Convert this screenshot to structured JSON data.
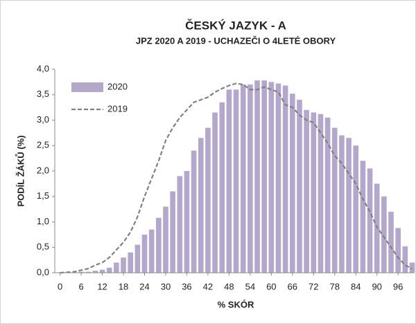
{
  "chart_data": {
    "type": "bar",
    "title": "ČESKÝ JAZYK - A",
    "subtitle": "JPZ 2020 A 2019 - UCHAZEČI O 4LETÉ OBORY",
    "x_label": "% SKÓR",
    "y_label": "PODÍL ŽÁKŮ (%)",
    "x": [
      0,
      2,
      4,
      6,
      8,
      10,
      12,
      14,
      16,
      18,
      20,
      22,
      24,
      26,
      28,
      30,
      32,
      34,
      36,
      38,
      40,
      42,
      44,
      46,
      48,
      50,
      52,
      54,
      56,
      58,
      60,
      62,
      64,
      66,
      68,
      70,
      72,
      74,
      76,
      78,
      80,
      82,
      84,
      86,
      88,
      90,
      92,
      94,
      96,
      98,
      100
    ],
    "series": [
      {
        "name": "2020",
        "type": "bar",
        "color": "#b4a7cc",
        "values": [
          0.01,
          0.01,
          0.01,
          0.02,
          0.02,
          0.04,
          0.06,
          0.1,
          0.2,
          0.3,
          0.4,
          0.55,
          0.75,
          0.85,
          1.08,
          1.3,
          1.6,
          1.9,
          2.0,
          2.4,
          2.65,
          2.85,
          3.15,
          3.35,
          3.6,
          3.6,
          3.7,
          3.7,
          3.78,
          3.78,
          3.75,
          3.72,
          3.68,
          3.52,
          3.4,
          3.2,
          3.15,
          3.12,
          3.05,
          2.85,
          2.7,
          2.65,
          2.5,
          2.2,
          2.05,
          1.75,
          1.5,
          1.2,
          0.88,
          0.52,
          0.2
        ]
      },
      {
        "name": "2019",
        "type": "line",
        "color": "#808080",
        "dashed": true,
        "values": [
          0,
          0.01,
          0.02,
          0.05,
          0.08,
          0.15,
          0.2,
          0.3,
          0.45,
          0.6,
          0.8,
          1.1,
          1.5,
          1.85,
          2.2,
          2.6,
          2.85,
          3.05,
          3.2,
          3.35,
          3.4,
          3.45,
          3.55,
          3.62,
          3.68,
          3.72,
          3.7,
          3.6,
          3.6,
          3.65,
          3.6,
          3.55,
          3.3,
          3.25,
          3.1,
          3.0,
          2.95,
          2.75,
          2.55,
          2.3,
          2.15,
          1.95,
          1.75,
          1.45,
          1.2,
          0.9,
          0.7,
          0.5,
          0.3,
          0.15,
          0.08
        ]
      }
    ],
    "xlim": [
      -1.5,
      100.5
    ],
    "xticks": [
      0,
      6,
      12,
      18,
      24,
      30,
      36,
      42,
      48,
      54,
      60,
      66,
      72,
      78,
      84,
      90,
      96
    ],
    "ylim": [
      0,
      4
    ],
    "yticks": [
      {
        "value": 0,
        "label": "0,0"
      },
      {
        "value": 0.5,
        "label": "0,5"
      },
      {
        "value": 1,
        "label": "1,0"
      },
      {
        "value": 1.5,
        "label": "1,5"
      },
      {
        "value": 2,
        "label": "2,0"
      },
      {
        "value": 2.5,
        "label": "2,5"
      },
      {
        "value": 3,
        "label": "3,0"
      },
      {
        "value": 3.5,
        "label": "3,5"
      },
      {
        "value": 4,
        "label": "4,0"
      }
    ],
    "grid": false,
    "legend": "upper-left"
  }
}
